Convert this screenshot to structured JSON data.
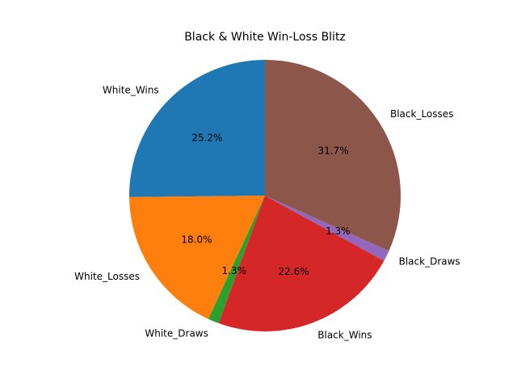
{
  "chart_data": {
    "type": "pie",
    "title": "Black & White Win-Loss Blitz",
    "slices": [
      {
        "label": "White_Wins",
        "value": 25.2,
        "pct_label": "25.2%",
        "color": "#1f77b4"
      },
      {
        "label": "White_Losses",
        "value": 18.0,
        "pct_label": "18.0%",
        "color": "#ff7f0e"
      },
      {
        "label": "White_Draws",
        "value": 1.3,
        "pct_label": "1.3%",
        "color": "#2ca02c"
      },
      {
        "label": "Black_Wins",
        "value": 22.6,
        "pct_label": "22.6%",
        "color": "#d62728"
      },
      {
        "label": "Black_Draws",
        "value": 1.3,
        "pct_label": "1.3%",
        "color": "#9467bd"
      },
      {
        "label": "Black_Losses",
        "value": 31.7,
        "pct_label": "31.7%",
        "color": "#8c564b"
      }
    ],
    "start_angle_deg": 90,
    "direction": "counterclockwise"
  }
}
